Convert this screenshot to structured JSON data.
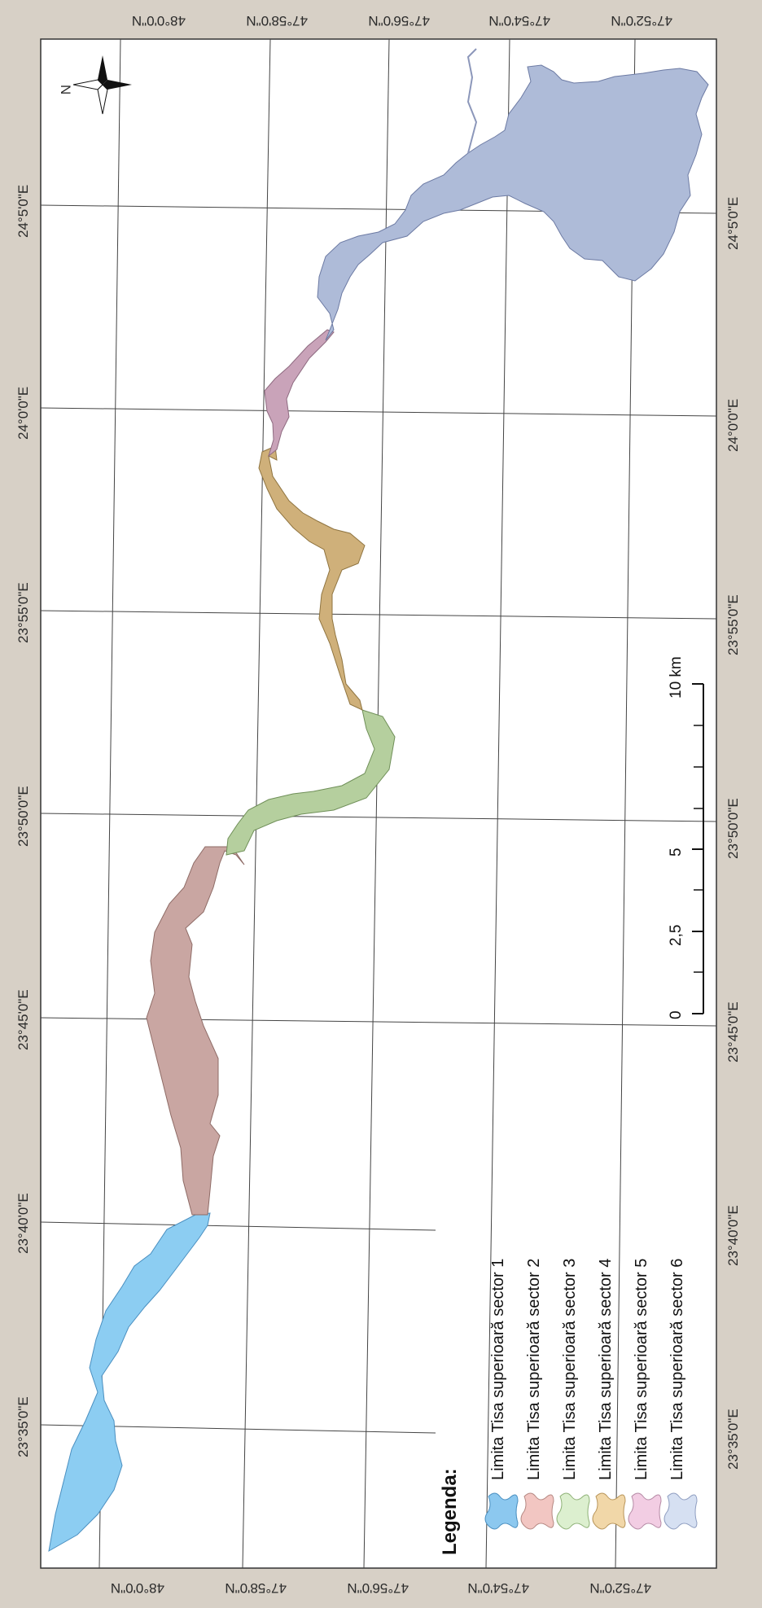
{
  "map": {
    "north_label": "N",
    "longitude_labels": [
      "23°35'0\"E",
      "23°40'0\"E",
      "23°45'0\"E",
      "23°50'0\"E",
      "23°55'0\"E",
      "24°0'0\"E",
      "24°5'0\"E"
    ],
    "latitude_labels": [
      "48°0'0\"N",
      "47°58'0\"N",
      "47°56'0\"N",
      "47°54'0\"N",
      "47°52'0\"N"
    ],
    "scale_bar": {
      "labels": [
        "0",
        "2,5",
        "5",
        "10 km"
      ]
    },
    "legend": {
      "title": "Legenda:",
      "items": [
        {
          "label": "Limita Tisa superioară sector 1",
          "color": "#8cc8ef"
        },
        {
          "label": "Limita Tisa superioară sector 2",
          "color": "#f2c6c2"
        },
        {
          "label": "Limita Tisa superioară sector 3",
          "color": "#dcefcf"
        },
        {
          "label": "Limita Tisa superioară sector 4",
          "color": "#f1d7a8"
        },
        {
          "label": "Limita Tisa superioară sector 5",
          "color": "#f2cde3"
        },
        {
          "label": "Limita Tisa superioară sector 6",
          "color": "#d6e0f2"
        }
      ]
    },
    "sector_colors": [
      "#8ccdf2",
      "#c9a6a2",
      "#b5cf9e",
      "#cfb07a",
      "#c9a3b9",
      "#aebbd8"
    ]
  }
}
